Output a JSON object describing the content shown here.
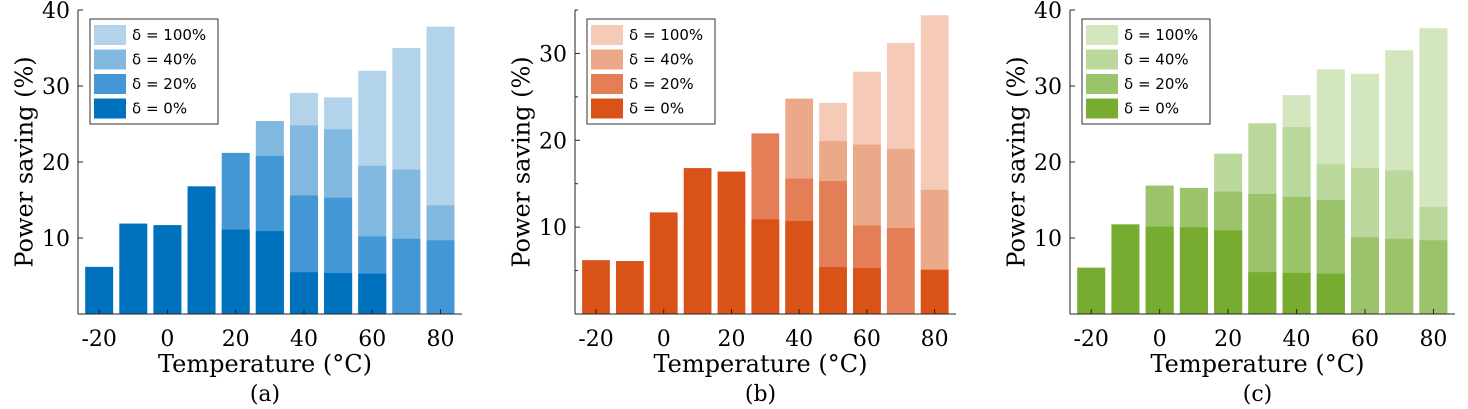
{
  "chart_data": [
    {
      "type": "bar",
      "stacked": "overlay",
      "caption": "(a)",
      "xlabel": "Temperature (°C)",
      "ylabel": "Power saving (%)",
      "x": [
        -20,
        -10,
        0,
        10,
        20,
        30,
        40,
        50,
        60,
        70,
        80
      ],
      "xticks": [
        "-20",
        "0",
        "20",
        "40",
        "60",
        "80"
      ],
      "xtick_values": [
        -20,
        0,
        20,
        40,
        60,
        80
      ],
      "ylim": [
        0,
        40
      ],
      "yticks": [
        "10",
        "20",
        "30",
        "40"
      ],
      "ytick_values": [
        10,
        20,
        30,
        40
      ],
      "legend_position": "top-left",
      "series": [
        {
          "name": "δ = 100%",
          "color": "#b3d3eb",
          "values": [
            null,
            null,
            null,
            null,
            null,
            null,
            29.1,
            28.5,
            32.0,
            35.0,
            37.8
          ]
        },
        {
          "name": "δ = 40%",
          "color": "#80b8e0",
          "values": [
            null,
            null,
            null,
            null,
            null,
            25.4,
            24.8,
            24.3,
            19.5,
            19.0,
            14.3
          ]
        },
        {
          "name": "δ = 20%",
          "color": "#4397d4",
          "values": [
            null,
            null,
            null,
            null,
            21.2,
            20.8,
            15.6,
            15.3,
            10.2,
            9.9,
            9.7
          ]
        },
        {
          "name": "δ = 0%",
          "color": "#0072bd",
          "values": [
            6.2,
            11.9,
            11.7,
            16.8,
            11.1,
            10.9,
            5.5,
            5.4,
            5.3,
            null,
            null
          ]
        }
      ]
    },
    {
      "type": "bar",
      "stacked": "overlay",
      "caption": "(b)",
      "xlabel": "Temperature (°C)",
      "ylabel": "Power saving (%)",
      "x": [
        -20,
        -10,
        0,
        10,
        20,
        30,
        40,
        50,
        60,
        70,
        80
      ],
      "xticks": [
        "-20",
        "0",
        "20",
        "40",
        "60",
        "80"
      ],
      "xtick_values": [
        -20,
        0,
        20,
        40,
        60,
        80
      ],
      "ylim": [
        0,
        35
      ],
      "yticks": [
        "10",
        "20",
        "30"
      ],
      "ytick_values": [
        10,
        20,
        30
      ],
      "legend_position": "top-left",
      "series": [
        {
          "name": "δ = 100%",
          "color": "#f5cbb7",
          "values": [
            null,
            null,
            null,
            null,
            null,
            null,
            null,
            24.3,
            27.9,
            31.2,
            34.4
          ]
        },
        {
          "name": "δ = 40%",
          "color": "#eba98a",
          "values": [
            null,
            null,
            null,
            null,
            null,
            null,
            24.8,
            19.9,
            19.5,
            19.0,
            14.3
          ]
        },
        {
          "name": "δ = 20%",
          "color": "#e37e56",
          "values": [
            null,
            null,
            null,
            null,
            null,
            20.8,
            15.6,
            15.3,
            10.2,
            9.9,
            null
          ]
        },
        {
          "name": "δ = 0%",
          "color": "#d95319",
          "values": [
            6.2,
            6.1,
            11.7,
            16.8,
            16.4,
            10.9,
            10.7,
            5.4,
            5.3,
            null,
            5.1
          ]
        }
      ]
    },
    {
      "type": "bar",
      "stacked": "overlay",
      "caption": "(c)",
      "xlabel": "Temperature (°C)",
      "ylabel": "Power saving (%)",
      "x": [
        -20,
        -10,
        0,
        10,
        20,
        30,
        40,
        50,
        60,
        70,
        80
      ],
      "xticks": [
        "-20",
        "0",
        "20",
        "40",
        "60",
        "80"
      ],
      "xtick_values": [
        -20,
        0,
        20,
        40,
        60,
        80
      ],
      "ylim": [
        0,
        40
      ],
      "yticks": [
        "10",
        "20",
        "30",
        "40"
      ],
      "ytick_values": [
        10,
        20,
        30,
        40
      ],
      "legend_position": "top-left",
      "series": [
        {
          "name": "δ = 100%",
          "color": "#d4e6be",
          "values": [
            null,
            null,
            null,
            null,
            null,
            null,
            28.8,
            32.2,
            31.6,
            34.7,
            37.6
          ]
        },
        {
          "name": "δ = 40%",
          "color": "#bbd89c",
          "values": [
            null,
            null,
            null,
            null,
            21.1,
            25.1,
            24.6,
            19.7,
            19.2,
            18.9,
            14.1
          ]
        },
        {
          "name": "δ = 20%",
          "color": "#9ac36a",
          "values": [
            null,
            null,
            16.9,
            16.6,
            16.1,
            15.8,
            15.4,
            15.0,
            10.1,
            9.9,
            9.7
          ]
        },
        {
          "name": "δ = 0%",
          "color": "#77ac30",
          "values": [
            6.1,
            11.8,
            11.5,
            11.4,
            11.0,
            5.5,
            5.4,
            5.3,
            null,
            null,
            null
          ]
        }
      ]
    }
  ]
}
